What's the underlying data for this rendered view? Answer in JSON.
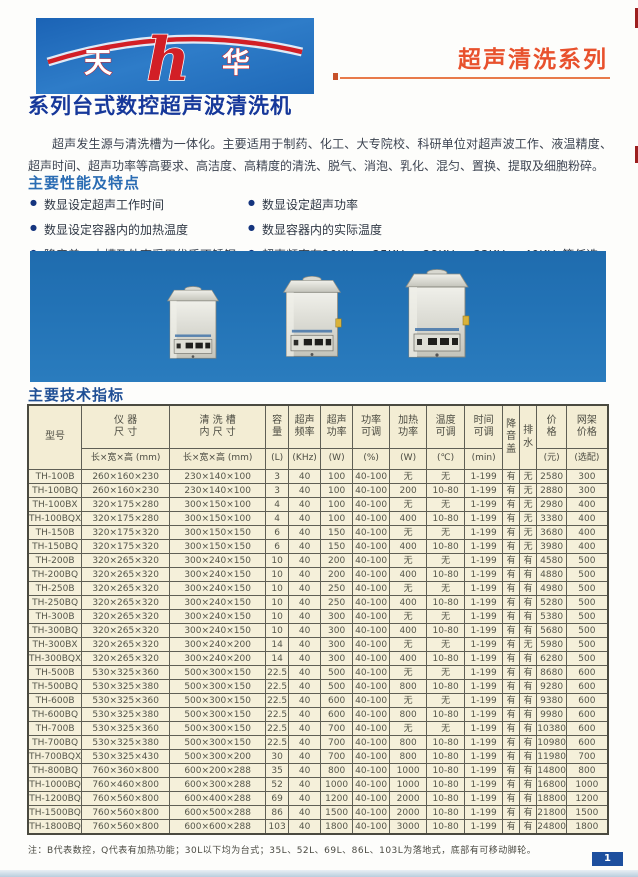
{
  "header": {
    "series_title": "超声清洗系列",
    "logo_char_left": "天",
    "logo_char_mid": "h",
    "logo_char_right": "华"
  },
  "page_title": "系列台式数控超声波清洗机",
  "intro": "超声发生源与清洗槽为一体化。主要适用于制药、化工、大专院校、科研单位对超声波工作、液温精度、超声时间、超声功率等高要求、高洁度、高精度的清洗、脱气、消泡、乳化、混匀、置换、提取及细胞粉碎。",
  "features": {
    "heading": "主要性能及特点",
    "left": [
      "数显设定超声工作时间",
      "数显设定容器内的加热温度",
      "降音盖、内槽及外壳采用优质不锈钢"
    ],
    "right": [
      "数显设定超声功率",
      "数显容器内的实际温度",
      "超声频率有20KHz、25KHz、28KHz、33KHz、40KHz等任选一种"
    ]
  },
  "specs": {
    "heading": "主要技术指标",
    "header": {
      "model": "型号",
      "instrument": "仪  器\n尺  寸",
      "instrument_sub": "长×宽×高 (mm)",
      "tank": "清 洗 槽\n内 尺 寸",
      "tank_sub": "长×宽×高 (mm)",
      "capacity": "容\n量",
      "capacity_sub": "(L)",
      "freq": "超声\n频率",
      "freq_sub": "(KHz)",
      "upower": "超声\n功率",
      "upower_sub": "(W)",
      "power_adj": "功率\n可调",
      "power_adj_sub": "(%)",
      "heat": "加热\n功率",
      "heat_sub": "(W)",
      "temp": "温度\n可调",
      "temp_sub": "(℃)",
      "time": "时间\n可调",
      "time_sub": "(min)",
      "cover": "降\n音\n盖",
      "drain": "排\n水",
      "price": "价\n格",
      "price_sub": "(元)",
      "rack": "网架\n价格",
      "rack_sub": "(选配)"
    },
    "rows": [
      [
        "TH-100B",
        "260×160×230",
        "230×140×100",
        "3",
        "40",
        "100",
        "40-100",
        "无",
        "无",
        "1-199",
        "有",
        "无",
        "2580",
        "300"
      ],
      [
        "TH-100BQ",
        "260×160×230",
        "230×140×100",
        "3",
        "40",
        "100",
        "40-100",
        "200",
        "10-80",
        "1-199",
        "有",
        "无",
        "2880",
        "300"
      ],
      [
        "TH-100BX",
        "320×175×280",
        "300×150×100",
        "4",
        "40",
        "100",
        "40-100",
        "无",
        "无",
        "1-199",
        "有",
        "无",
        "2980",
        "400"
      ],
      [
        "TH-100BQX",
        "320×175×280",
        "300×150×100",
        "4",
        "40",
        "100",
        "40-100",
        "400",
        "10-80",
        "1-199",
        "有",
        "无",
        "3380",
        "400"
      ],
      [
        "TH-150B",
        "320×175×320",
        "300×150×150",
        "6",
        "40",
        "150",
        "40-100",
        "无",
        "无",
        "1-199",
        "有",
        "无",
        "3680",
        "400"
      ],
      [
        "TH-150BQ",
        "320×175×320",
        "300×150×150",
        "6",
        "40",
        "150",
        "40-100",
        "400",
        "10-80",
        "1-199",
        "有",
        "无",
        "3980",
        "400"
      ],
      [
        "TH-200B",
        "320×265×320",
        "300×240×150",
        "10",
        "40",
        "200",
        "40-100",
        "无",
        "无",
        "1-199",
        "有",
        "有",
        "4580",
        "500"
      ],
      [
        "TH-200BQ",
        "320×265×320",
        "300×240×150",
        "10",
        "40",
        "200",
        "40-100",
        "400",
        "10-80",
        "1-199",
        "有",
        "有",
        "4880",
        "500"
      ],
      [
        "TH-250B",
        "320×265×320",
        "300×240×150",
        "10",
        "40",
        "250",
        "40-100",
        "无",
        "无",
        "1-199",
        "有",
        "有",
        "4980",
        "500"
      ],
      [
        "TH-250BQ",
        "320×265×320",
        "300×240×150",
        "10",
        "40",
        "250",
        "40-100",
        "400",
        "10-80",
        "1-199",
        "有",
        "有",
        "5280",
        "500"
      ],
      [
        "TH-300B",
        "320×265×320",
        "300×240×150",
        "10",
        "40",
        "300",
        "40-100",
        "无",
        "无",
        "1-199",
        "有",
        "有",
        "5380",
        "500"
      ],
      [
        "TH-300BQ",
        "320×265×320",
        "300×240×150",
        "10",
        "40",
        "300",
        "40-100",
        "400",
        "10-80",
        "1-199",
        "有",
        "有",
        "5680",
        "500"
      ],
      [
        "TH-300BX",
        "320×265×320",
        "300×240×200",
        "14",
        "40",
        "300",
        "40-100",
        "无",
        "无",
        "1-199",
        "有",
        "无",
        "5980",
        "500"
      ],
      [
        "TH-300BQX",
        "320×265×320",
        "300×240×200",
        "14",
        "40",
        "300",
        "40-100",
        "400",
        "10-80",
        "1-199",
        "有",
        "有",
        "6280",
        "500"
      ],
      [
        "TH-500B",
        "530×325×360",
        "500×300×150",
        "22.5",
        "40",
        "500",
        "40-100",
        "无",
        "无",
        "1-199",
        "有",
        "有",
        "8680",
        "600"
      ],
      [
        "TH-500BQ",
        "530×325×380",
        "500×300×150",
        "22.5",
        "40",
        "500",
        "40-100",
        "800",
        "10-80",
        "1-199",
        "有",
        "有",
        "9280",
        "600"
      ],
      [
        "TH-600B",
        "530×325×360",
        "500×300×150",
        "22.5",
        "40",
        "600",
        "40-100",
        "无",
        "无",
        "1-199",
        "有",
        "有",
        "9380",
        "600"
      ],
      [
        "TH-600BQ",
        "530×325×380",
        "500×300×150",
        "22.5",
        "40",
        "600",
        "40-100",
        "800",
        "10-80",
        "1-199",
        "有",
        "有",
        "9980",
        "600"
      ],
      [
        "TH-700B",
        "530×325×360",
        "500×300×150",
        "22.5",
        "40",
        "700",
        "40-100",
        "无",
        "无",
        "1-199",
        "有",
        "有",
        "10380",
        "600"
      ],
      [
        "TH-700BQ",
        "530×325×380",
        "500×300×150",
        "22.5",
        "40",
        "700",
        "40-100",
        "800",
        "10-80",
        "1-199",
        "有",
        "有",
        "10980",
        "600"
      ],
      [
        "TH-700BQX",
        "530×325×430",
        "500×300×200",
        "30",
        "40",
        "700",
        "40-100",
        "800",
        "10-80",
        "1-199",
        "有",
        "有",
        "11980",
        "700"
      ],
      [
        "TH-800BQ",
        "760×360×800",
        "600×200×288",
        "35",
        "40",
        "800",
        "40-100",
        "1000",
        "10-80",
        "1-199",
        "有",
        "有",
        "14800",
        "800"
      ],
      [
        "TH-1000BQ",
        "760×460×800",
        "600×300×288",
        "52",
        "40",
        "1000",
        "40-100",
        "1000",
        "10-80",
        "1-199",
        "有",
        "有",
        "16800",
        "1000"
      ],
      [
        "TH-1200BQ",
        "760×560×800",
        "600×400×288",
        "69",
        "40",
        "1200",
        "40-100",
        "2000",
        "10-80",
        "1-199",
        "有",
        "有",
        "18800",
        "1200"
      ],
      [
        "TH-1500BQ",
        "760×560×800",
        "600×500×288",
        "86",
        "40",
        "1500",
        "40-100",
        "2000",
        "10-80",
        "1-199",
        "有",
        "有",
        "21800",
        "1500"
      ],
      [
        "TH-1800BQ",
        "760×560×800",
        "600×600×288",
        "103",
        "40",
        "1800",
        "40-100",
        "3000",
        "10-80",
        "1-199",
        "有",
        "有",
        "24800",
        "1800"
      ]
    ]
  },
  "note": "注：B代表数控，Q代表有加热功能；30L以下均为台式；35L、52L、69L、86L、103L为落地式，底部有可移动脚轮。",
  "page_number": "1",
  "colors": {
    "accent_red": "#e8512d",
    "title_navy": "#16389a",
    "heading_blue": "#2a6cb3",
    "photo_blue": "#2373b6",
    "table_bg": "#f5f0da",
    "page_num_bg": "#1d4f9e"
  }
}
